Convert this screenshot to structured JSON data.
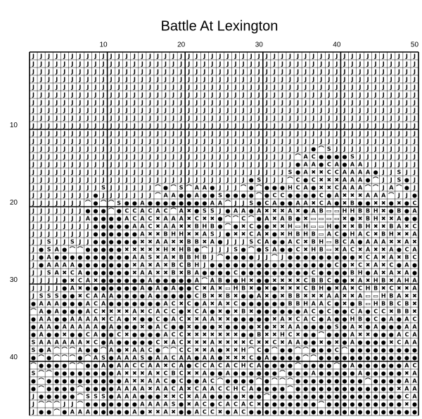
{
  "title": "Battle At Lexington",
  "column_labels": [
    10,
    20,
    30,
    40,
    50
  ],
  "row_labels": [
    10,
    20,
    30,
    40
  ],
  "rows": [
    "JJJJJJJJJJJJJJJJJJJJJJJJJJJJJJJJJJJJJJJJJJJJJJJJJJ",
    "JJJJJJJJJJJJJJJJJJJJJJJJJJJJJJJJJJJJJJJJJJJJJJJJJJ",
    "JJJJJJJJJJJJJJJJJJJJJJJJJJJJJJJJJJJJJJJJJJJJJJJJJJ",
    "JJJJJJJJJJJJJJJJJJJJJJJJJJJJJJJJJJJJJJJJJJJJJJJJJJ",
    "JJJJJJJJJJJJJJJJJJJJJJJJJJJJJJJJJJJJJJJJJJJJJJJJJJ",
    "JJJJJJJJJJJJJJJJJJJJJJJJJJJJJJJJJJJJJJJJJJJJJJJJJJ",
    "JJJJJJJJJJJJJJJJJJJJJJJJJJJJJJJJJJJJJJJJJJJJJJJJJJ",
    "JJJJJJJJJJJJJJJJJJJJJJJJJJJJJJJJJJJJJJJJJJJJJJJJJJ",
    "JJJJJJJJJJJJJJJJJJJJJJJJJJJJJJJJJJJJJJJJJJJJJJJJJJ",
    "JJJJJJJJJJJJJJJJJJJJJJJJJJJJJJJJJJJJJJJJJJJJJJJJJJ",
    "JJJJJJJJJJJJJJJJJJJJJJJJJJJJJJJJJJJJJJJJJJJJJJJJJJ",
    "JJJJJJJJJJJJJJJJJJJJJJJJJJJJJJJJJJJJJJJJJJJJJJJJJJ",
    "JJJJJJJJJJJJJJJJJJJJJJJJJJJJJJJJJJJJ●⌒SJJJJJJJJJJJ",
    "JJJJJJJJJJJJJJJJJJJJJJJJJJJJJJJJJJ⌒AC●●●●SJJJJJJJJ",
    "JJJJJJJJJJJJJJJJJJJJJJJJJJJJJJJJJJ●AA●CA●AAJJJJJJJ",
    "JJJJJJJJJJJJJJJJJJJJJJJJJJJJJJJJJS●A✖✖CCAAAA●JJSJJ",
    "JJJJJJJJJJJJJJJJJJJJJJJJJJJJ●SJJJ⌒C●C✖✖✖AAA●⌒JJS●J",
    "JJJJJJJJJSJJJJJJ⌒●⌒S⌒AA●JJJ⌒●⌒●●●HCA●✖✖CAAA⌒⌒JA⌒●J",
    "JJJJJJJJ●JJJJJJJ⌒AA●●A●●S●●●●⌒●CC●●●●C●A✖✖✖AAA⌒JJ●",
    "JJJJJJJ⌒●⌒⌒S●●A●●●●●●●●AA⌒JJS●CA●●AA✖CA●✖B●●✖✖●✖●C",
    "JJJJJJJ●●●⌒●CCACAC⌒A✖●SSJ●AA●A✖✖✖A✖●AB▭▭HHBBH✖●B●A",
    "JJJJJJJA●●●●ACAC✖AAA✖C✖✖●⌒⌒C⌒●A✖AB●✖▭▭▭▭✖●✖BH✖✖A●●",
    "JJJJJJJJ●●●●●AAC✖AA✖✖BHB●⌒●✖C●●✖✖H▭H▭▭H●✖✖BH✖✖BA✖C",
    "JJJJJJJJ●●●●●●A✖✖BHH✖✖ASJ●✖✖CA✖●✖HBHB▭AC●HAC✖BH✖✖A",
    "JJSJJSJJ●●●●●●✖✖AA✖✖BB✖A●JJJSCA●●AC✖BH▭BCA●AAA✖✖A✖",
    "J●SA●⌒⌒●●●●●✖✖✖✖✖H✖HB●⌒JJJS●⌒●SA●●C✖HB▭✖AC✖A✖✖A●CA",
    "J●A●●●●●●●●●●AAS✖A✖BBHBJ⌒●●●●JJ⌒J●●●●●●●●●✖CA✖A✖BC",
    "J●AAAA●●●●●●●✖A✖A✖BCBHJ●●●●●●●●●●●●●●●●C●✖C✖A✖C●A●",
    "JJSA✖CA●●●●●●✖AA✖✖B✖BA●●●●C●●●●●●●●●C●●●●BH●A✖A✖A●",
    "JJJJ●✖CA✖●●●●●●A●●●●●A⌒AB●●H✖●●✖✖✖✖CBBC●●✖A✖HB✖AHA",
    "JJJJ●A✖●●●●●●●A●A●A●●C✖A✖▭HB✖●✖●✖✖✖CBH●✖A✖CHB✖C✖✖A",
    "JSSS●●✖CAAA●●●●A●●●●●CB✖✖B✖●●A✖●✖BB✖✖✖AA✖✖A▭▭HBA✖✖",
    "●AAA●●●ACA●●●●●●●AC✖C●A✖A✖C●●●●●●BBHAAC●✖●B▭HBBCB✖",
    "⌒A●A●●●AC✖✖✖✖A✖CACC●✖CA●✖●✖B✖●●●●●●AC●C●●CA●CC✖BB✖",
    "●AA●●AAAA✖CA●✖●●C●AC✖✖AA✖✖●●●●●✖A✖CAC●A●●HB●C●A●AC",
    "●AA●AAAAA●A●●●✖●AC●●✖●●●✖●●●●✖●✖✖AA●●●●S●A✖●A●●●AA",
    "●A●●✖●●CA●●C✖●●●●ACC✖✖✖✖✖✖✖●●B✖✖HC✖●●⌒●●●A✖✖●●●ACA",
    "SAAAAAA✖C●A●●●●●C✖AC✖✖✖A✖✖✖✖C✖✖C✖AA●●✖●✖●A●●●●✖CAA",
    "S●A⌒⌒⌒A●●⌒A●✖AAC●⌒⌒CC✖✖A●✖✖H⌒C●⌒●●⌒⌒●●●C⌒●●●●●●●●●",
    "●⌒●⌒⌒⌒●⌒AS●AAAS●AACAA●AA●✖✖✖C●A●●●●⌒⌒●●●●●●●●●●●●●",
    "⌒●●●●⌒⌒●●A●AACCAA✖CA●CCACACHCA●●●●⌒●●●●⌒●A●●●●●●AC",
    "S⌒⌒●●●●●●●●A✖✖✖A✖CBC✖✖A●●A●●●●●●⌒●●●A●●●●●A●●●●●✖A",
    "●⌒●●●●●●●●●●A✖✖AAC●C●●AC⌒●●●●⌒●⌒⌒⌒●●●●●●●●●⌒●●●●AA",
    "●⌒●●●●⌒●●●●AAAA✖AACA✖CAACCHCA●●●●⌒●●●●●●●●●●●●●✖AA",
    "J●●●●●⌒SSS●AAA●●●✖✖C✖AA●●●●✖●●⌒●●●●●●●●●●●●●●●●●CA",
    "J⌒⌒⌒JJ⌒●●●●●●●AAAAS●✖AC●CACAC✖●●●●●●●⌒●●●●●●●●●●✖●",
    "J●●⌒●AAA●●●●●A●✖✖A✖●●ACC✖●AC●●●●●●●●●●●●●●●●●●●●●●"
  ]
}
